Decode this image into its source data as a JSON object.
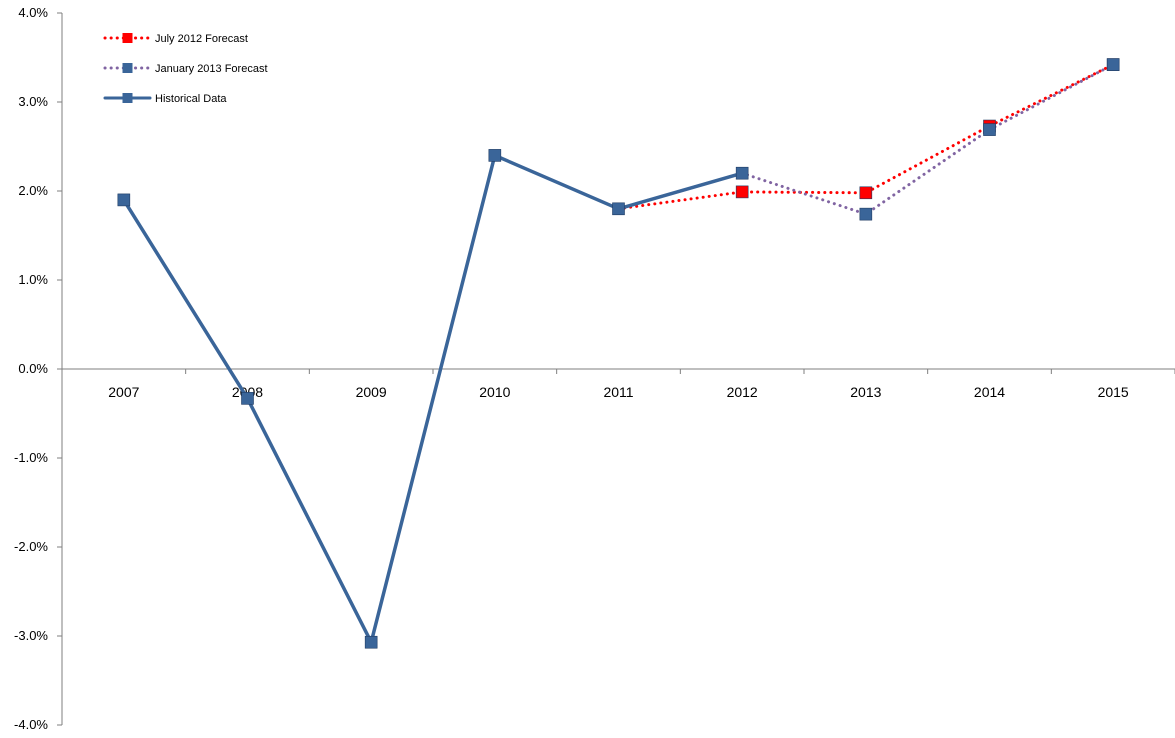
{
  "chart_data": {
    "type": "line",
    "title": "",
    "xlabel": "",
    "ylabel": "",
    "categories": [
      "2007",
      "2008",
      "2009",
      "2010",
      "2011",
      "2012",
      "2013",
      "2014",
      "2015"
    ],
    "ylim": [
      -4.0,
      4.0
    ],
    "yticks": [
      "4.0%",
      "3.0%",
      "2.0%",
      "1.0%",
      "0.0%",
      "-1.0%",
      "-2.0%",
      "-3.0%",
      "-4.0%"
    ],
    "grid": false,
    "legend_position": "top-left",
    "series": [
      {
        "name": "July 2012 Forecast",
        "color": "#ff0000",
        "line_style": "dotted",
        "marker": "square",
        "values": [
          null,
          null,
          null,
          null,
          1.8,
          1.99,
          1.98,
          2.73,
          3.42
        ]
      },
      {
        "name": "January 2013 Forecast",
        "color": "#8064a2",
        "marker_color": "#3a6599",
        "line_style": "dotted",
        "marker": "square",
        "values": [
          null,
          null,
          null,
          null,
          1.8,
          2.2,
          1.74,
          2.69,
          3.42
        ]
      },
      {
        "name": "Historical  Data",
        "color": "#3a6599",
        "line_style": "solid",
        "marker": "square",
        "values": [
          1.9,
          -0.33,
          -3.07,
          2.4,
          1.8,
          2.2,
          null,
          null,
          null
        ]
      }
    ]
  }
}
